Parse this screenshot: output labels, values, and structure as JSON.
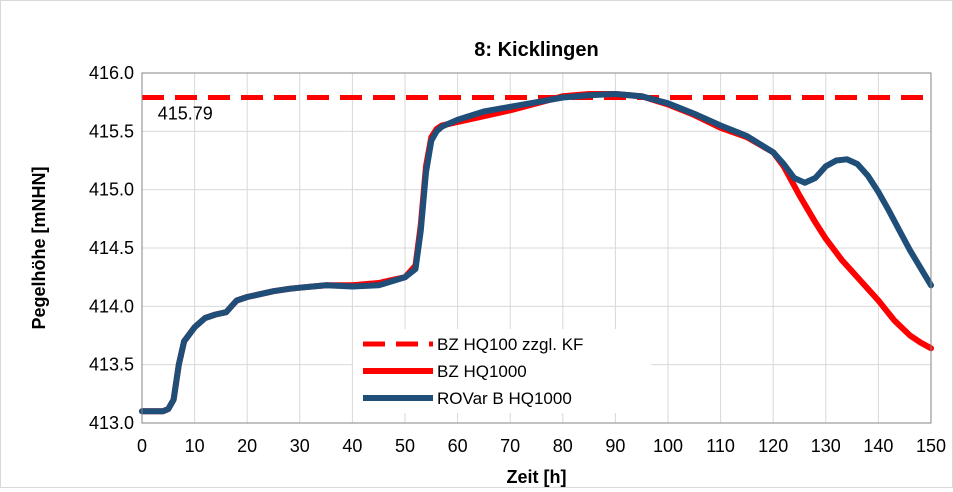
{
  "chart_data": {
    "type": "line",
    "title": "8: Kicklingen",
    "xlabel": "Zeit [h]",
    "ylabel": "Pegelhöhe [mNHN]",
    "xlim": [
      0,
      150
    ],
    "ylim": [
      413.0,
      416.0
    ],
    "x_ticks": [
      "0",
      "10",
      "20",
      "30",
      "40",
      "50",
      "60",
      "70",
      "80",
      "90",
      "100",
      "110",
      "120",
      "130",
      "140",
      "150"
    ],
    "y_ticks": [
      "413.0",
      "413.5",
      "414.0",
      "414.5",
      "415.0",
      "415.5",
      "416.0"
    ],
    "grid": true,
    "legend_position": "bottom-center",
    "annotation": {
      "text": "415.79",
      "x": 3,
      "y": 415.6
    },
    "series": [
      {
        "name": "BZ HQ100 zzgl. KF",
        "color": "#ff0000",
        "style": "dashed",
        "x": [
          0,
          150
        ],
        "y": [
          415.79,
          415.79
        ]
      },
      {
        "name": "BZ HQ1000",
        "color": "#ff0000",
        "style": "solid",
        "x": [
          0,
          4,
          5,
          6,
          7,
          8,
          10,
          12,
          14,
          16,
          17,
          18,
          20,
          22,
          25,
          28,
          30,
          35,
          40,
          45,
          50,
          52,
          53,
          54,
          55,
          56,
          57,
          58,
          60,
          65,
          70,
          75,
          80,
          85,
          90,
          95,
          100,
          105,
          110,
          115,
          120,
          122,
          125,
          128,
          130,
          133,
          136,
          140,
          143,
          146,
          148,
          150
        ],
        "y": [
          413.1,
          413.1,
          413.12,
          413.2,
          413.5,
          413.7,
          413.82,
          413.9,
          413.93,
          413.95,
          414.0,
          414.05,
          414.08,
          414.1,
          414.13,
          414.15,
          414.16,
          414.18,
          414.18,
          414.2,
          414.25,
          414.35,
          414.7,
          415.2,
          415.45,
          415.52,
          415.55,
          415.56,
          415.58,
          415.63,
          415.68,
          415.74,
          415.8,
          415.82,
          415.82,
          415.8,
          415.73,
          415.64,
          415.53,
          415.45,
          415.32,
          415.2,
          414.95,
          414.72,
          414.58,
          414.4,
          414.25,
          414.05,
          413.88,
          413.75,
          413.69,
          413.64
        ]
      },
      {
        "name": "ROVar B HQ1000",
        "color": "#1f4e79",
        "style": "solid",
        "x": [
          0,
          4,
          5,
          6,
          7,
          8,
          10,
          12,
          14,
          16,
          17,
          18,
          20,
          22,
          25,
          28,
          30,
          35,
          40,
          45,
          50,
          52,
          53,
          54,
          55,
          56,
          57,
          58,
          60,
          65,
          70,
          75,
          80,
          85,
          90,
          95,
          100,
          105,
          110,
          115,
          120,
          122,
          124,
          126,
          128,
          130,
          132,
          134,
          136,
          138,
          140,
          142,
          144,
          146,
          148,
          150
        ],
        "y": [
          413.1,
          413.1,
          413.12,
          413.2,
          413.5,
          413.7,
          413.82,
          413.9,
          413.93,
          413.95,
          414.0,
          414.05,
          414.08,
          414.1,
          414.13,
          414.15,
          414.16,
          414.18,
          414.17,
          414.18,
          414.25,
          414.32,
          414.65,
          415.15,
          415.42,
          415.5,
          415.54,
          415.56,
          415.6,
          415.67,
          415.71,
          415.75,
          415.79,
          415.81,
          415.82,
          415.8,
          415.74,
          415.65,
          415.55,
          415.46,
          415.32,
          415.22,
          415.1,
          415.06,
          415.1,
          415.2,
          415.25,
          415.26,
          415.22,
          415.12,
          414.98,
          414.82,
          414.65,
          414.48,
          414.33,
          414.18
        ]
      }
    ]
  }
}
